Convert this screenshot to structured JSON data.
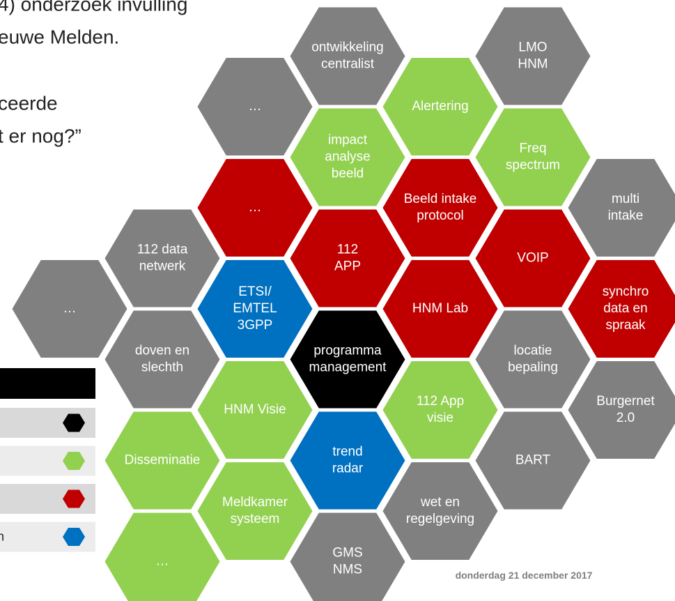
{
  "slide": {
    "text_lines": [
      "4) onderzoek invulling",
      "euwe Melden.",
      "ceerde",
      "t er nog?”"
    ],
    "date": "donderdag 21 december 2017",
    "legend": {
      "rows": [
        {
          "color": "#000000"
        },
        {
          "color": "#92d050"
        },
        {
          "color": "#c00000"
        },
        {
          "color": "#0070c0",
          "label": "n"
        }
      ]
    },
    "hexagons": [
      {
        "lines": [
          "…"
        ],
        "color": "#808080",
        "col": 2,
        "row": 1
      },
      {
        "lines": [
          "ontwikkeling",
          "centralist"
        ],
        "color": "#808080",
        "col": 3,
        "row": 0.5
      },
      {
        "lines": [
          "Alertering"
        ],
        "color": "#92d050",
        "col": 4,
        "row": 1
      },
      {
        "lines": [
          "LMO",
          "HNM"
        ],
        "color": "#808080",
        "col": 5,
        "row": 0.5
      },
      {
        "lines": [
          "impact",
          "analyse",
          "beeld"
        ],
        "color": "#92d050",
        "col": 3,
        "row": 1.5
      },
      {
        "lines": [
          "Freq",
          "spectrum"
        ],
        "color": "#92d050",
        "col": 5,
        "row": 1.5
      },
      {
        "lines": [
          "…"
        ],
        "color": "#c00000",
        "col": 2,
        "row": 2
      },
      {
        "lines": [
          "Beeld intake",
          "protocol"
        ],
        "color": "#c00000",
        "col": 4,
        "row": 2
      },
      {
        "lines": [
          "multi",
          "intake"
        ],
        "color": "#808080",
        "col": 6,
        "row": 2
      },
      {
        "lines": [
          "112 data",
          "netwerk"
        ],
        "color": "#808080",
        "col": 1,
        "row": 2.5
      },
      {
        "lines": [
          "112",
          "APP"
        ],
        "color": "#c00000",
        "col": 3,
        "row": 2.5
      },
      {
        "lines": [
          "VOIP"
        ],
        "color": "#c00000",
        "col": 5,
        "row": 2.5
      },
      {
        "lines": [
          "…"
        ],
        "color": "#808080",
        "col": 0,
        "row": 3
      },
      {
        "lines": [
          "ETSI/",
          "EMTEL",
          "3GPP"
        ],
        "color": "#0070c0",
        "col": 2,
        "row": 3
      },
      {
        "lines": [
          "HNM  Lab"
        ],
        "color": "#c00000",
        "col": 4,
        "row": 3
      },
      {
        "lines": [
          "synchro",
          "data en",
          "spraak"
        ],
        "color": "#c00000",
        "col": 6,
        "row": 3
      },
      {
        "lines": [
          "doven en",
          "slechth"
        ],
        "color": "#808080",
        "col": 1,
        "row": 3.5
      },
      {
        "lines": [
          "programma",
          "management"
        ],
        "color": "#000000",
        "col": 3,
        "row": 3.5
      },
      {
        "lines": [
          "locatie",
          "bepaling"
        ],
        "color": "#808080",
        "col": 5,
        "row": 3.5
      },
      {
        "lines": [
          "HNM  Visie"
        ],
        "color": "#92d050",
        "col": 2,
        "row": 4
      },
      {
        "lines": [
          "112 App",
          "visie"
        ],
        "color": "#92d050",
        "col": 4,
        "row": 4
      },
      {
        "lines": [
          "Burgernet",
          "2.0"
        ],
        "color": "#808080",
        "col": 6,
        "row": 4
      },
      {
        "lines": [
          "Disseminatie"
        ],
        "color": "#92d050",
        "col": 1,
        "row": 4.5
      },
      {
        "lines": [
          "trend",
          "radar"
        ],
        "color": "#0070c0",
        "col": 3,
        "row": 4.5
      },
      {
        "lines": [
          "BART"
        ],
        "color": "#808080",
        "col": 5,
        "row": 4.5
      },
      {
        "lines": [
          "Meldkamer",
          "systeem"
        ],
        "color": "#92d050",
        "col": 2,
        "row": 5
      },
      {
        "lines": [
          "wet en",
          "regelgeving"
        ],
        "color": "#808080",
        "col": 4,
        "row": 5
      },
      {
        "lines": [
          "…"
        ],
        "color": "#92d050",
        "col": 1,
        "row": 5.5
      },
      {
        "lines": [
          "GMS",
          "NMS"
        ],
        "color": "#808080",
        "col": 3,
        "row": 5.5
      }
    ]
  }
}
